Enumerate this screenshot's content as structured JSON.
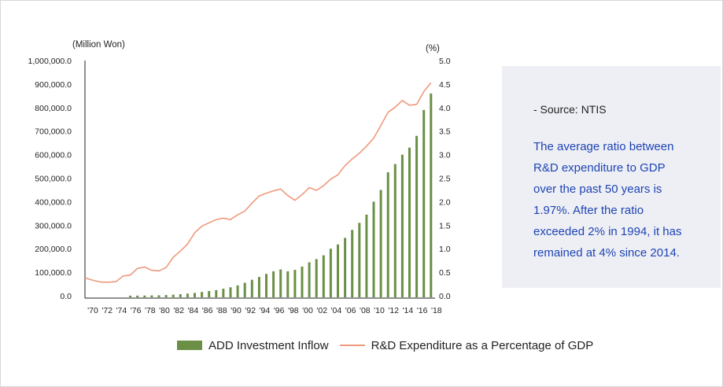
{
  "note": {
    "source": "- Source: NTIS",
    "text": "The average ratio between\nR&D expenditure to GDP\nover the past 50 years is\n1.97%. After the ratio\nexceeded 2% in 1994, it has\n remained at 4% since 2014."
  },
  "colors": {
    "bar": "#6b8f45",
    "line": "#ee9a7c",
    "note_text": "#1e44b4",
    "note_bg": "#eeeff5"
  },
  "chart_data": {
    "type": "bar",
    "left_unit": "(Million Won)",
    "right_unit": "(%)",
    "y_left": {
      "min": 0,
      "max": 1000000,
      "ticks": [
        "0.0",
        "100,000.0",
        "200,000.0",
        "300,000.0",
        "400,000.0",
        "500,000.0",
        "600,000.0",
        "700,000.0",
        "800,000.0",
        "900,000.0",
        "1,000,000.0"
      ]
    },
    "y_right": {
      "min": 0,
      "max": 5,
      "ticks": [
        "0.0",
        "0.5",
        "1.0",
        "1.5",
        "2.0",
        "2.5",
        "3.0",
        "3.5",
        "4.0",
        "4.5",
        "5.0"
      ]
    },
    "x_labels": [
      "'70",
      "'72",
      "'74",
      "'76",
      "'78",
      "'80",
      "'82",
      "'84",
      "'86",
      "'88",
      "'90",
      "'92",
      "'94",
      "'96",
      "'98",
      "'00",
      "'02",
      "'04",
      "'06",
      "'08",
      "'10",
      "'12",
      "'14",
      "'16",
      "'18"
    ],
    "years": [
      1970,
      1971,
      1972,
      1973,
      1974,
      1975,
      1976,
      1977,
      1978,
      1979,
      1980,
      1981,
      1982,
      1983,
      1984,
      1985,
      1986,
      1987,
      1988,
      1989,
      1990,
      1991,
      1992,
      1993,
      1994,
      1995,
      1996,
      1997,
      1998,
      1999,
      2000,
      2001,
      2002,
      2003,
      2004,
      2005,
      2006,
      2007,
      2008,
      2009,
      2010,
      2011,
      2012,
      2013,
      2014,
      2015,
      2016,
      2017,
      2018
    ],
    "series": [
      {
        "name": "ADD Investment Inflow",
        "type": "bar",
        "axis": "left",
        "values": [
          0,
          0,
          0,
          0,
          0,
          0,
          300,
          600,
          1000,
          1500,
          2000,
          3000,
          4500,
          6500,
          9000,
          12000,
          16000,
          20000,
          24000,
          30000,
          36000,
          44000,
          55000,
          68000,
          80000,
          93000,
          104000,
          112000,
          104000,
          110000,
          124000,
          142000,
          156000,
          172000,
          200000,
          218000,
          246000,
          280000,
          310000,
          345000,
          400000,
          450000,
          525000,
          560000,
          600000,
          630000,
          680000,
          790000,
          860000
        ]
      },
      {
        "name": "R&D Expenditure as a Percentage of GDP",
        "type": "line",
        "axis": "right",
        "values": [
          0.38,
          0.32,
          0.29,
          0.29,
          0.3,
          0.42,
          0.44,
          0.58,
          0.61,
          0.54,
          0.53,
          0.6,
          0.82,
          0.95,
          1.1,
          1.34,
          1.48,
          1.55,
          1.62,
          1.65,
          1.62,
          1.72,
          1.8,
          1.97,
          2.12,
          2.18,
          2.23,
          2.27,
          2.13,
          2.03,
          2.15,
          2.3,
          2.24,
          2.34,
          2.48,
          2.57,
          2.77,
          2.91,
          3.03,
          3.18,
          3.35,
          3.62,
          3.9,
          4.01,
          4.15,
          4.05,
          4.07,
          4.34,
          4.53
        ]
      }
    ]
  }
}
